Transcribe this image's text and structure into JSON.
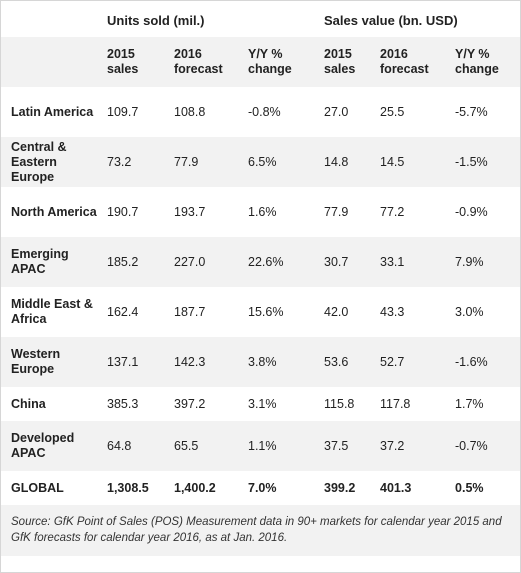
{
  "group_headers": {
    "units": "Units sold (mil.)",
    "value": "Sales value (bn. USD)"
  },
  "column_headers": {
    "units_2015": "2015 sales",
    "units_2016": "2016 forecast",
    "units_yy": "Y/Y % change",
    "value_2015": "2015 sales",
    "value_2016": "2016 forecast",
    "value_yy": "Y/Y % change"
  },
  "rows": [
    {
      "region": "Latin America",
      "u2015": "109.7",
      "u2016": "108.8",
      "uyy": "-0.8%",
      "v2015": "27.0",
      "v2016": "25.5",
      "vyy": "-5.7%"
    },
    {
      "region": "Central & Eastern Europe",
      "u2015": "73.2",
      "u2016": "77.9",
      "uyy": "6.5%",
      "v2015": "14.8",
      "v2016": "14.5",
      "vyy": "-1.5%"
    },
    {
      "region": "North America",
      "u2015": "190.7",
      "u2016": "193.7",
      "uyy": "1.6%",
      "v2015": "77.9",
      "v2016": "77.2",
      "vyy": "-0.9%"
    },
    {
      "region": "Emerging APAC",
      "u2015": "185.2",
      "u2016": "227.0",
      "uyy": "22.6%",
      "v2015": "30.7",
      "v2016": "33.1",
      "vyy": "7.9%"
    },
    {
      "region": "Middle East & Africa",
      "u2015": "162.4",
      "u2016": "187.7",
      "uyy": "15.6%",
      "v2015": "42.0",
      "v2016": "43.3",
      "vyy": "3.0%"
    },
    {
      "region": "Western Europe",
      "u2015": "137.1",
      "u2016": "142.3",
      "uyy": "3.8%",
      "v2015": "53.6",
      "v2016": "52.7",
      "vyy": "-1.6%"
    },
    {
      "region": "China",
      "u2015": "385.3",
      "u2016": "397.2",
      "uyy": "3.1%",
      "v2015": "115.8",
      "v2016": "117.8",
      "vyy": "1.7%"
    },
    {
      "region": "Developed APAC",
      "u2015": "64.8",
      "u2016": "65.5",
      "uyy": "1.1%",
      "v2015": "37.5",
      "v2016": "37.2",
      "vyy": "-0.7%"
    }
  ],
  "global": {
    "region": "GLOBAL",
    "u2015": "1,308.5",
    "u2016": "1,400.2",
    "uyy": "7.0%",
    "v2015": "399.2",
    "v2016": "401.3",
    "vyy": "0.5%"
  },
  "source": "Source: GfK Point of Sales (POS) Measurement data in 90+ markets for calendar year 2015 and GfK forecasts for calendar year 2016, as at Jan. 2016."
}
